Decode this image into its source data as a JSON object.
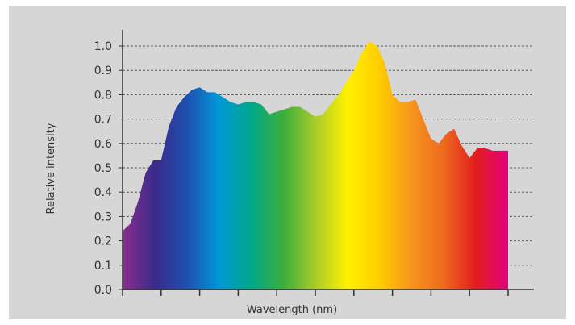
{
  "chart_data": {
    "type": "area",
    "title": "",
    "xlabel": "Wavelength (nm)",
    "ylabel": "Relative intensity",
    "ylim": [
      0,
      1.05
    ],
    "yticks": [
      "0.0",
      "0.1",
      "0.2",
      "0.3",
      "0.4",
      "0.5",
      "0.6",
      "0.7",
      "0.8",
      "0.9",
      "1.0"
    ],
    "x_tick_count": 10,
    "grid": true,
    "x_tick_labels_shown": false,
    "fill": "visible-spectrum rainbow gradient (violet to magenta)",
    "colors": {
      "background": "#d6d6d6",
      "grid": "#555555",
      "axis": "#333333",
      "spectrum": [
        "#8a2d8e",
        "#3a2a8a",
        "#1e4fb0",
        "#0098d8",
        "#00a88a",
        "#3cae3c",
        "#a8cc2a",
        "#fff000",
        "#ffcc00",
        "#f7941d",
        "#ee6a1e",
        "#e21d1d",
        "#e4007f"
      ]
    },
    "series": [
      {
        "x": [
          0,
          0.02,
          0.04,
          0.06,
          0.08,
          0.1,
          0.12,
          0.14,
          0.16,
          0.18,
          0.2,
          0.22,
          0.24,
          0.26,
          0.28,
          0.3,
          0.32,
          0.34,
          0.36,
          0.38,
          0.4,
          0.42,
          0.44,
          0.46,
          0.48,
          0.5,
          0.52,
          0.54,
          0.56,
          0.58,
          0.6,
          0.62,
          0.64,
          0.66,
          0.68,
          0.7,
          0.72,
          0.74,
          0.76,
          0.78,
          0.8,
          0.82,
          0.84,
          0.86,
          0.88,
          0.9,
          0.92,
          0.94,
          0.96,
          0.98,
          1.0
        ],
        "values": [
          0.24,
          0.27,
          0.36,
          0.48,
          0.53,
          0.53,
          0.67,
          0.75,
          0.79,
          0.82,
          0.83,
          0.81,
          0.81,
          0.79,
          0.77,
          0.76,
          0.77,
          0.77,
          0.76,
          0.72,
          0.73,
          0.74,
          0.75,
          0.75,
          0.73,
          0.71,
          0.72,
          0.76,
          0.8,
          0.85,
          0.9,
          0.97,
          1.02,
          1.0,
          0.93,
          0.8,
          0.77,
          0.77,
          0.78,
          0.7,
          0.62,
          0.6,
          0.64,
          0.66,
          0.59,
          0.54,
          0.58,
          0.58,
          0.57,
          0.57,
          0.57
        ]
      }
    ]
  }
}
